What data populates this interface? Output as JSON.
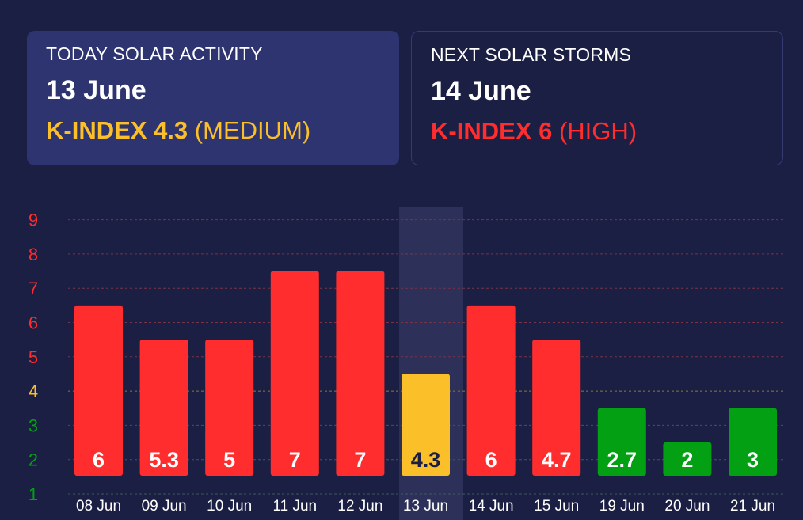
{
  "today": {
    "label": "TODAY SOLAR ACTIVITY",
    "date": "13 June",
    "kindex": "K-INDEX 4.3",
    "level": "(MEDIUM)",
    "color": "#fbbf2a"
  },
  "next": {
    "label": "NEXT SOLAR STORMS",
    "date": "14 June",
    "kindex": "K-INDEX 6",
    "level": "(HIGH)",
    "color": "#ff2d2d"
  },
  "colors": {
    "high": "#ff2d2d",
    "medium": "#fbbf2a",
    "low": "#03a014",
    "highlight": "#2d3159"
  },
  "chart_data": {
    "type": "bar",
    "categories": [
      "08 Jun",
      "09 Jun",
      "10 Jun",
      "11 Jun",
      "12 Jun",
      "13 Jun",
      "14 Jun",
      "15 Jun",
      "19 Jun",
      "20 Jun",
      "21 Jun"
    ],
    "values": [
      6,
      5.3,
      5,
      7,
      7,
      4.3,
      6,
      4.7,
      2.7,
      2,
      3
    ],
    "bar_heights": [
      6.5,
      5.5,
      5.5,
      7.5,
      7.5,
      4.5,
      6.5,
      5.5,
      3.5,
      2.5,
      3.5
    ],
    "labels": [
      "6",
      "5.3",
      "5",
      "7",
      "7",
      "4.3",
      "6",
      "4.7",
      "2.7",
      "2",
      "3"
    ],
    "levels": [
      "high",
      "high",
      "high",
      "high",
      "high",
      "medium",
      "high",
      "high",
      "low",
      "low",
      "low"
    ],
    "highlight_index": 5,
    "y_ticks": [
      "1",
      "2",
      "3",
      "4",
      "5",
      "6",
      "7",
      "8",
      "9"
    ],
    "y_tick_levels": [
      "low",
      "low",
      "low",
      "medium",
      "high",
      "high",
      "high",
      "high",
      "high"
    ],
    "ylim": [
      1,
      9
    ],
    "grid": "dashed"
  }
}
